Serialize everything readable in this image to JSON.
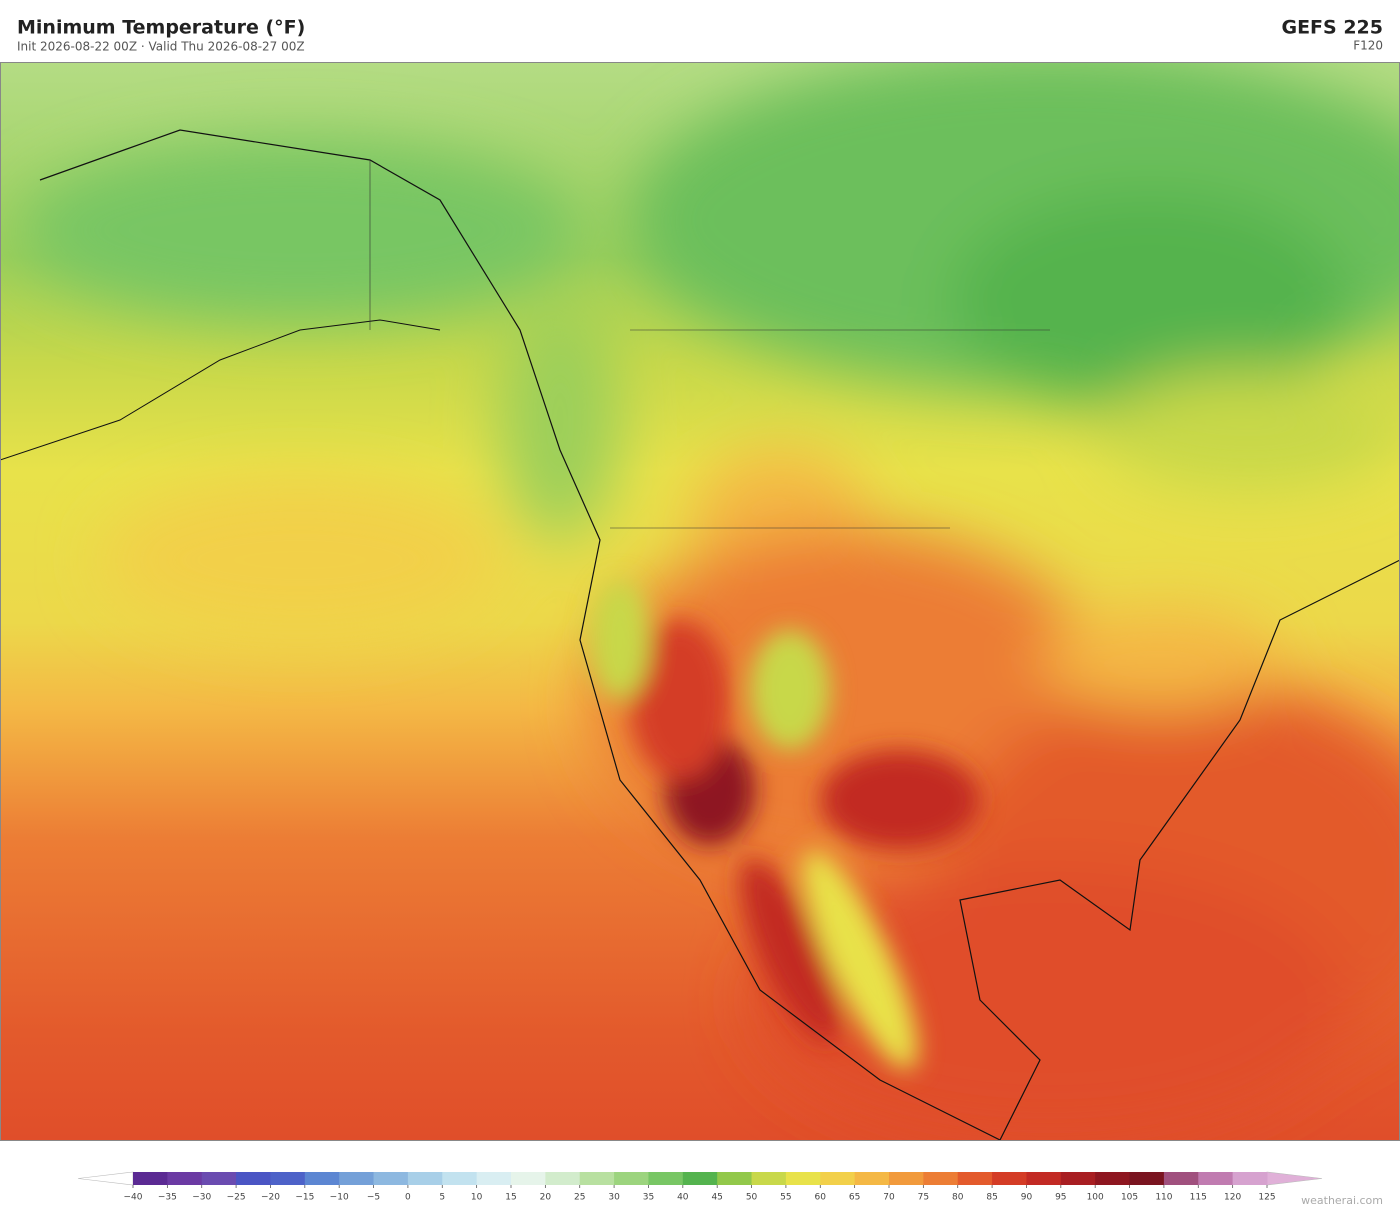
{
  "header": {
    "title": "Minimum Temperature  (°F)",
    "subtitle": "Init 2026-08-22 00Z  ·  Valid Thu 2026-08-27 00Z",
    "model": "GEFS  225",
    "forecast_hour": "F120"
  },
  "colorbar": {
    "ticks": [
      {
        "value": -40,
        "label": "−40"
      },
      {
        "value": -35,
        "label": "−35"
      },
      {
        "value": -30,
        "label": "−30"
      },
      {
        "value": -25,
        "label": "−25"
      },
      {
        "value": -20,
        "label": "−20"
      },
      {
        "value": -15,
        "label": "−15"
      },
      {
        "value": -10,
        "label": "−10"
      },
      {
        "value": -5,
        "label": "−5"
      },
      0,
      5,
      10,
      15,
      20,
      25,
      30,
      35,
      40,
      45,
      50,
      55,
      60,
      65,
      70,
      75,
      80,
      85,
      90,
      95,
      100,
      105,
      110,
      115,
      120,
      125
    ],
    "colors": [
      "#5b2a93",
      "#6b3aa3",
      "#6a4bb0",
      "#4a55c4",
      "#4d62c8",
      "#5c86d2",
      "#74a0d8",
      "#8db8e0",
      "#a8cfe8",
      "#c2e2ef",
      "#d9eef2",
      "#e6f4ea",
      "#d2eccc",
      "#b8e0a0",
      "#9cd47e",
      "#78c664",
      "#54b34e",
      "#92c84a",
      "#c8d84a",
      "#e8e24a",
      "#f2d04a",
      "#f4b845",
      "#f19a3c",
      "#ec7d35",
      "#e35a2c",
      "#d43c26",
      "#c22a24",
      "#a81e22",
      "#8e1620",
      "#7a1420",
      "#a0507e",
      "#c07bb0",
      "#d6a2cf"
    ],
    "under_color": "#ffffff",
    "over_color": "#e0b0d8"
  },
  "watermark": "weatherai.com"
}
